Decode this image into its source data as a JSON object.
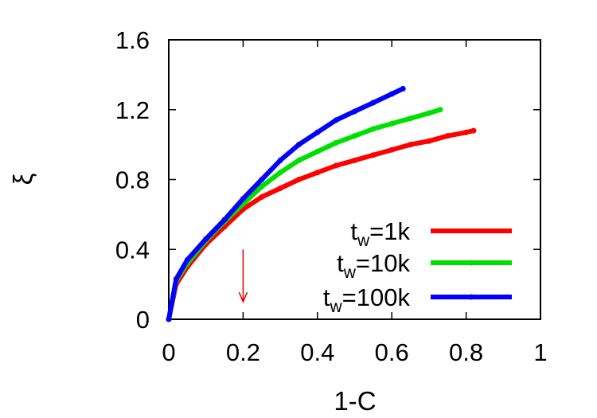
{
  "chart_data": {
    "type": "line",
    "title": "",
    "xlabel": "1-C",
    "ylabel": "ξ",
    "xlim": [
      0,
      1
    ],
    "ylim": [
      0,
      1.6
    ],
    "xticks": [
      "0",
      "0.2",
      "0.4",
      "0.6",
      "0.8",
      "1"
    ],
    "yticks": [
      "0",
      "0.4",
      "0.8",
      "1.2",
      "1.6"
    ],
    "grid": false,
    "legend_position": "bottom-right",
    "annotation": {
      "type": "arrow",
      "color": "#e00000",
      "x": 0.2,
      "y_from": 0.4,
      "y_to": 0.1
    },
    "series": [
      {
        "name_prefix": "t",
        "name_sub": "w",
        "name_suffix": "=1k",
        "color": "#ff0000",
        "x": [
          0,
          0.02,
          0.05,
          0.1,
          0.15,
          0.2,
          0.25,
          0.3,
          0.35,
          0.4,
          0.45,
          0.5,
          0.55,
          0.6,
          0.65,
          0.7,
          0.75,
          0.8,
          0.82
        ],
        "y": [
          0,
          0.2,
          0.3,
          0.43,
          0.53,
          0.63,
          0.7,
          0.75,
          0.8,
          0.84,
          0.88,
          0.91,
          0.94,
          0.97,
          1.0,
          1.02,
          1.05,
          1.07,
          1.08
        ]
      },
      {
        "name_prefix": "t",
        "name_sub": "w",
        "name_suffix": "=10k",
        "color": "#00e000",
        "x": [
          0,
          0.02,
          0.05,
          0.1,
          0.15,
          0.2,
          0.25,
          0.3,
          0.35,
          0.4,
          0.45,
          0.5,
          0.55,
          0.6,
          0.65,
          0.7,
          0.73
        ],
        "y": [
          0,
          0.22,
          0.32,
          0.45,
          0.56,
          0.66,
          0.76,
          0.84,
          0.91,
          0.96,
          1.01,
          1.05,
          1.09,
          1.12,
          1.15,
          1.18,
          1.2
        ]
      },
      {
        "name_prefix": "t",
        "name_sub": "w",
        "name_suffix": "=100k",
        "color": "#0000ff",
        "x": [
          0,
          0.02,
          0.05,
          0.1,
          0.15,
          0.2,
          0.25,
          0.3,
          0.35,
          0.4,
          0.45,
          0.5,
          0.55,
          0.6,
          0.63
        ],
        "y": [
          0,
          0.23,
          0.34,
          0.46,
          0.57,
          0.69,
          0.8,
          0.91,
          1.0,
          1.07,
          1.14,
          1.19,
          1.24,
          1.29,
          1.32
        ]
      }
    ]
  }
}
